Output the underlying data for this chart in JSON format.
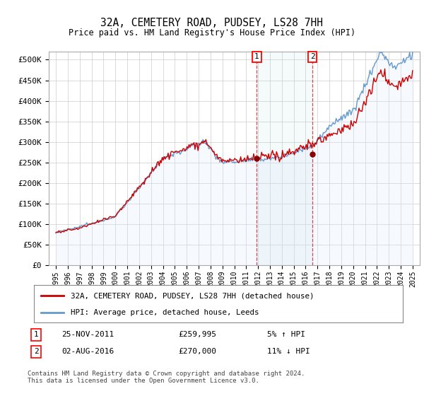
{
  "title": "32A, CEMETERY ROAD, PUDSEY, LS28 7HH",
  "subtitle": "Price paid vs. HM Land Registry's House Price Index (HPI)",
  "ylabel_ticks": [
    "£0",
    "£50K",
    "£100K",
    "£150K",
    "£200K",
    "£250K",
    "£300K",
    "£350K",
    "£400K",
    "£450K",
    "£500K"
  ],
  "ytick_values": [
    0,
    50000,
    100000,
    150000,
    200000,
    250000,
    300000,
    350000,
    400000,
    450000,
    500000
  ],
  "ylim": [
    0,
    520000
  ],
  "hpi_color": "#6699cc",
  "hpi_fill_color": "#ddeeff",
  "price_color": "#cc0000",
  "sale1_date": 2011.9,
  "sale1_price": 259995,
  "sale2_date": 2016.58,
  "sale2_price": 270000,
  "legend_line1": "32A, CEMETERY ROAD, PUDSEY, LS28 7HH (detached house)",
  "legend_line2": "HPI: Average price, detached house, Leeds",
  "footnote": "Contains HM Land Registry data © Crown copyright and database right 2024.\nThis data is licensed under the Open Government Licence v3.0.",
  "background_color": "#ffffff",
  "grid_color": "#cccccc"
}
